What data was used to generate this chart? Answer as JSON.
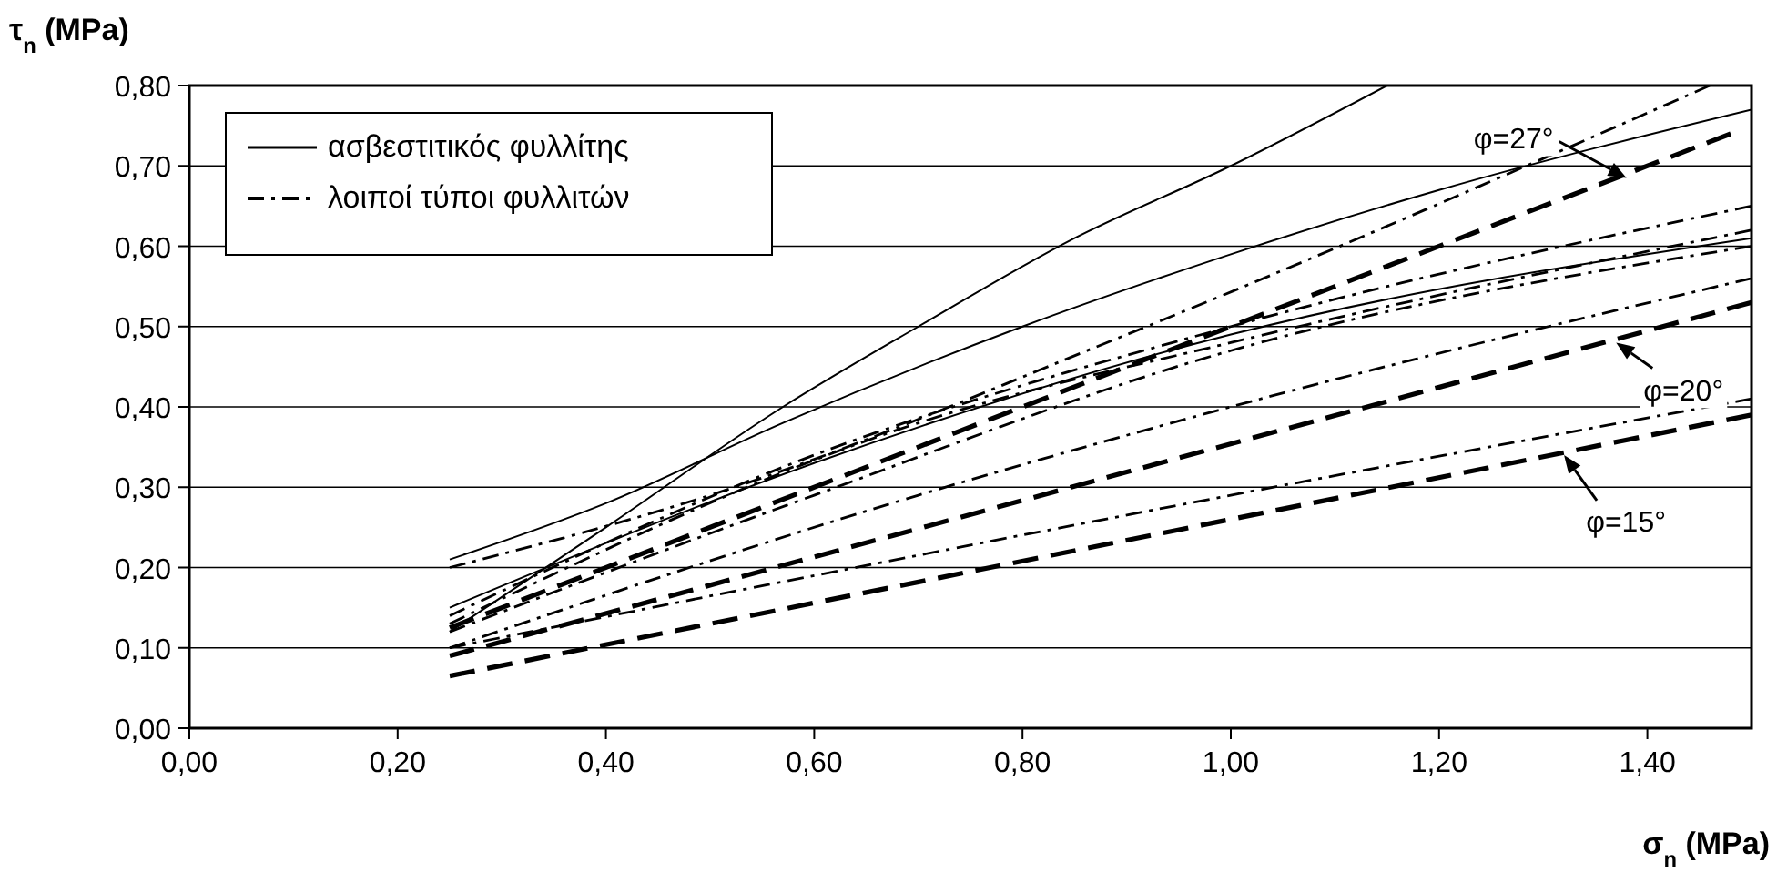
{
  "chart_data": {
    "type": "line",
    "xlabel": "σ$_{n}$ (MPa)",
    "ylabel": "τ$_{n}$ (MPa)",
    "xlim": [
      0,
      1.5
    ],
    "ylim": [
      0,
      0.8
    ],
    "xticks": [
      {
        "value": 0,
        "label": "0,00"
      },
      {
        "value": 0.2,
        "label": "0,20"
      },
      {
        "value": 0.4,
        "label": "0,40"
      },
      {
        "value": 0.6,
        "label": "0,60"
      },
      {
        "value": 0.8,
        "label": "0,80"
      },
      {
        "value": 1.0,
        "label": "1,00"
      },
      {
        "value": 1.2,
        "label": "1,20"
      },
      {
        "value": 1.4,
        "label": "1,40"
      }
    ],
    "yticks": [
      {
        "value": 0,
        "label": "0,00"
      },
      {
        "value": 0.1,
        "label": "0,10"
      },
      {
        "value": 0.2,
        "label": "0,20"
      },
      {
        "value": 0.3,
        "label": "0,30"
      },
      {
        "value": 0.4,
        "label": "0,40"
      },
      {
        "value": 0.5,
        "label": "0,50"
      },
      {
        "value": 0.6,
        "label": "0,60"
      },
      {
        "value": 0.7,
        "label": "0,70"
      },
      {
        "value": 0.8,
        "label": "0,80"
      }
    ],
    "grid": "y",
    "legend": "top left",
    "marker": "none",
    "series": [
      {
        "name": "ασβεστιτικός φυλλίτης",
        "color": "#000000",
        "line_style": "solid",
        "x": [
          0.25,
          0.4,
          0.57,
          0.8,
          1.0,
          1.2,
          1.5
        ],
        "values": [
          0.21,
          0.28,
          0.38,
          0.5,
          0.59,
          0.67,
          0.77
        ]
      },
      {
        "color": "#000000",
        "line_style": "solid",
        "x": [
          0.25,
          0.4,
          0.57,
          0.7,
          0.85,
          1.0,
          1.15
        ],
        "values": [
          0.12,
          0.25,
          0.4,
          0.5,
          0.61,
          0.7,
          0.8
        ]
      },
      {
        "color": "#000000",
        "line_style": "solid",
        "x": [
          0.25,
          0.6,
          1.0,
          1.5
        ],
        "values": [
          0.15,
          0.33,
          0.49,
          0.61
        ]
      },
      {
        "name": "λοιποί τύποι φυλλιτών",
        "color": "#000000",
        "line_style": "dashdot",
        "x": [
          0.25,
          0.5,
          0.9,
          1.46
        ],
        "values": [
          0.2,
          0.29,
          0.49,
          0.8
        ]
      },
      {
        "color": "#000000",
        "line_style": "dashdot",
        "x": [
          0.25,
          0.6,
          1.0,
          1.5
        ],
        "values": [
          0.14,
          0.34,
          0.5,
          0.65
        ]
      },
      {
        "color": "#000000",
        "line_style": "dashdot",
        "x": [
          0.25,
          0.7,
          1.0,
          1.5
        ],
        "values": [
          0.13,
          0.38,
          0.48,
          0.62
        ]
      },
      {
        "color": "#000000",
        "line_style": "dashdot",
        "x": [
          0.25,
          0.6,
          1.0,
          1.5
        ],
        "values": [
          0.12,
          0.29,
          0.47,
          0.6
        ]
      },
      {
        "color": "#000000",
        "line_style": "dashdot",
        "x": [
          0.25,
          0.7,
          1.0,
          1.5
        ],
        "values": [
          0.1,
          0.29,
          0.4,
          0.56
        ]
      },
      {
        "color": "#000000",
        "line_style": "dashdot",
        "x": [
          0.25,
          0.6,
          1.0,
          1.5
        ],
        "values": [
          0.1,
          0.19,
          0.29,
          0.41
        ]
      },
      {
        "color": "#000000",
        "line_style": "dashed",
        "x": [
          0.25,
          1.48
        ],
        "values": [
          0.125,
          0.74
        ]
      },
      {
        "color": "#000000",
        "line_style": "dashed",
        "x": [
          0.25,
          1.5
        ],
        "values": [
          0.09,
          0.53
        ]
      },
      {
        "color": "#000000",
        "line_style": "dashed",
        "x": [
          0.25,
          1.5
        ],
        "values": [
          0.065,
          0.39
        ]
      }
    ],
    "annotations": [
      {
        "text": "φ=27°",
        "x": 1.38,
        "y": 0.685
      },
      {
        "text": "φ=20°",
        "x": 1.37,
        "y": 0.48
      },
      {
        "text": "φ=15°",
        "x": 1.32,
        "y": 0.34
      }
    ]
  }
}
